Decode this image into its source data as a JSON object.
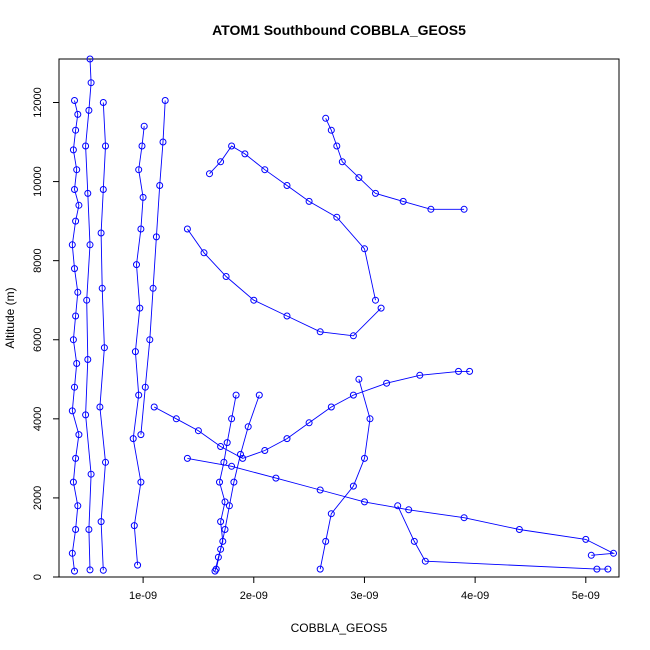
{
  "chart_data": {
    "type": "scatter",
    "title": "ATOM1 Southbound COBBLA_GEOS5",
    "xlabel": "COBBLA_GEOS5",
    "ylabel": "Altitude (m)",
    "xlim": [
      2.4e-10,
      5.3e-09
    ],
    "ylim": [
      0,
      13100
    ],
    "x_ticks": [
      {
        "value": 1e-09,
        "label": "1e-09"
      },
      {
        "value": 2e-09,
        "label": "2e-09"
      },
      {
        "value": 3e-09,
        "label": "3e-09"
      },
      {
        "value": 4e-09,
        "label": "4e-09"
      },
      {
        "value": 5e-09,
        "label": "5e-09"
      }
    ],
    "y_ticks": [
      {
        "value": 0,
        "label": "0"
      },
      {
        "value": 2000,
        "label": "2000"
      },
      {
        "value": 4000,
        "label": "4000"
      },
      {
        "value": 6000,
        "label": "6000"
      },
      {
        "value": 8000,
        "label": "8000"
      },
      {
        "value": 10000,
        "label": "10000"
      },
      {
        "value": 12000,
        "label": "12000"
      }
    ],
    "grid": false,
    "marker": "open-circle",
    "line": true,
    "color": "#0000ff",
    "series": [
      {
        "x": [
          3.8e-10,
          3.6e-10,
          3.9e-10,
          4.1e-10,
          3.7e-10,
          3.9e-10,
          4.2e-10,
          3.6e-10,
          3.8e-10,
          4e-10,
          3.7e-10,
          3.9e-10,
          4.1e-10,
          3.8e-10,
          3.6e-10,
          3.9e-10,
          4.2e-10,
          3.8e-10,
          4e-10,
          3.7e-10,
          3.9e-10,
          4.1e-10,
          3.8e-10
        ],
        "y": [
          150,
          600,
          1200,
          1800,
          2400,
          3000,
          3600,
          4200,
          4800,
          5400,
          6000,
          6600,
          7200,
          7800,
          8400,
          9000,
          9400,
          9800,
          10300,
          10800,
          11300,
          11700,
          12050
        ]
      },
      {
        "x": [
          5.2e-10,
          5.1e-10,
          5.3e-10,
          4.8e-10,
          5e-10,
          4.9e-10,
          5.2e-10,
          5e-10,
          4.8e-10,
          5.1e-10,
          5.3e-10,
          5.2e-10
        ],
        "y": [
          180,
          1200,
          2600,
          4100,
          5500,
          7000,
          8400,
          9700,
          10900,
          11800,
          12500,
          13100
        ]
      },
      {
        "x": [
          6.4e-10,
          6.2e-10,
          6.6e-10,
          6.1e-10,
          6.5e-10,
          6.3e-10,
          6.2e-10,
          6.4e-10,
          6.6e-10,
          6.4e-10
        ],
        "y": [
          170,
          1400,
          2900,
          4300,
          5800,
          7300,
          8700,
          9800,
          10900,
          12000
        ]
      },
      {
        "x": [
          9.5e-10,
          9.2e-10,
          9.8e-10,
          9.1e-10,
          9.6e-10,
          9.3e-10,
          9.7e-10,
          9.4e-10,
          9.8e-10,
          1e-09,
          9.6e-10,
          9.9e-10,
          1.01e-09
        ],
        "y": [
          300,
          1300,
          2400,
          3500,
          4600,
          5700,
          6800,
          7900,
          8800,
          9600,
          10300,
          10900,
          11400
        ]
      },
      {
        "x": [
          1.2e-09,
          1.18e-09,
          1.15e-09,
          1.12e-09,
          1.09e-09,
          1.06e-09,
          1.02e-09,
          9.8e-10
        ],
        "y": [
          12050,
          11000,
          9900,
          8600,
          7300,
          6000,
          4800,
          3600
        ]
      },
      {
        "x": [
          1.65e-09,
          1.68e-09,
          1.72e-09,
          1.7e-09,
          1.74e-09,
          1.69e-09,
          1.73e-09,
          1.76e-09,
          1.8e-09,
          1.84e-09
        ],
        "y": [
          150,
          500,
          900,
          1400,
          1900,
          2400,
          2900,
          3400,
          4000,
          4600
        ]
      },
      {
        "x": [
          1.66e-09,
          1.7e-09,
          1.74e-09,
          1.78e-09,
          1.82e-09,
          1.88e-09,
          1.95e-09,
          2.05e-09
        ],
        "y": [
          200,
          700,
          1200,
          1800,
          2400,
          3100,
          3800,
          4600
        ]
      },
      {
        "x": [
          1.6e-09,
          1.7e-09,
          1.8e-09,
          1.92e-09,
          2.1e-09,
          2.3e-09,
          2.5e-09,
          2.75e-09,
          3e-09,
          3.1e-09
        ],
        "y": [
          10200,
          10500,
          10900,
          10700,
          10300,
          9900,
          9500,
          9100,
          8300,
          7000
        ]
      },
      {
        "x": [
          2.65e-09,
          2.7e-09,
          2.75e-09,
          2.8e-09,
          2.95e-09,
          3.1e-09,
          3.35e-09,
          3.6e-09,
          3.9e-09
        ],
        "y": [
          11600,
          11300,
          10900,
          10500,
          10100,
          9700,
          9500,
          9300,
          9300
        ]
      },
      {
        "x": [
          1.1e-09,
          1.3e-09,
          1.5e-09,
          1.7e-09,
          1.9e-09,
          2.1e-09,
          2.3e-09,
          2.5e-09,
          2.7e-09,
          2.9e-09,
          3.2e-09,
          3.5e-09,
          3.85e-09,
          3.95e-09
        ],
        "y": [
          4300,
          4000,
          3700,
          3300,
          3000,
          3200,
          3500,
          3900,
          4300,
          4600,
          4900,
          5100,
          5200,
          5200
        ]
      },
      {
        "x": [
          1.4e-09,
          1.8e-09,
          2.2e-09,
          2.6e-09,
          3e-09,
          3.4e-09,
          3.9e-09,
          4.4e-09,
          5e-09,
          5.25e-09,
          5.05e-09
        ],
        "y": [
          3000,
          2800,
          2500,
          2200,
          1900,
          1700,
          1500,
          1200,
          950,
          600,
          550
        ]
      },
      {
        "x": [
          2.6e-09,
          2.65e-09,
          2.7e-09,
          2.9e-09,
          3e-09,
          3.05e-09,
          2.95e-09
        ],
        "y": [
          200,
          900,
          1600,
          2300,
          3000,
          4000,
          5000
        ]
      },
      {
        "x": [
          3.3e-09,
          3.45e-09,
          3.55e-09,
          5.1e-09,
          5.2e-09
        ],
        "y": [
          1800,
          900,
          400,
          200,
          200
        ]
      },
      {
        "x": [
          1.4e-09,
          1.55e-09,
          1.75e-09,
          2e-09,
          2.3e-09,
          2.6e-09,
          2.9e-09,
          3.15e-09
        ],
        "y": [
          8800,
          8200,
          7600,
          7000,
          6600,
          6200,
          6100,
          6800
        ]
      }
    ]
  }
}
